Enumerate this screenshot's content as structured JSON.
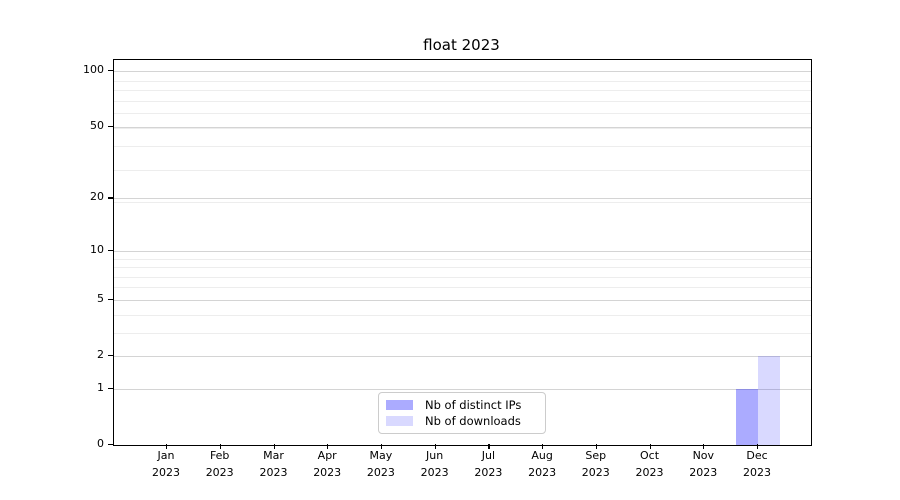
{
  "chart_data": {
    "type": "bar",
    "title": "float 2023",
    "xlabel": "",
    "ylabel": "",
    "scale": "log1p",
    "ylim": [
      0,
      115
    ],
    "grid": "both",
    "legend_position": "lower center",
    "categories": [
      "Jan",
      "Feb",
      "Mar",
      "Apr",
      "May",
      "Jun",
      "Jul",
      "Aug",
      "Sep",
      "Oct",
      "Nov",
      "Dec"
    ],
    "x_year": "2023",
    "y_ticks": [
      100,
      50,
      20,
      10,
      5,
      2,
      1,
      0
    ],
    "y_minor_gridlines": [
      3,
      4,
      6,
      7,
      8,
      9,
      19,
      29,
      39,
      49,
      59,
      69,
      79,
      89
    ],
    "series": [
      {
        "name": "Nb of distinct IPs",
        "color": "rgba(0,0,255,0.33)",
        "color_hex": "#aaaaf7",
        "values": [
          0,
          0,
          0,
          0,
          0,
          0,
          0,
          0,
          0,
          0,
          0,
          1
        ]
      },
      {
        "name": "Nb of downloads",
        "color": "rgba(0,0,255,0.15)",
        "color_hex": "#dcdcfc",
        "values": [
          0,
          0,
          0,
          0,
          0,
          0,
          0,
          0,
          0,
          0,
          0,
          2
        ]
      }
    ],
    "colors": {
      "major_grid": "#d4d4d4",
      "minor_grid": "#ededed",
      "spine": "#000000",
      "text": "#000000",
      "background": "#ffffff"
    }
  }
}
